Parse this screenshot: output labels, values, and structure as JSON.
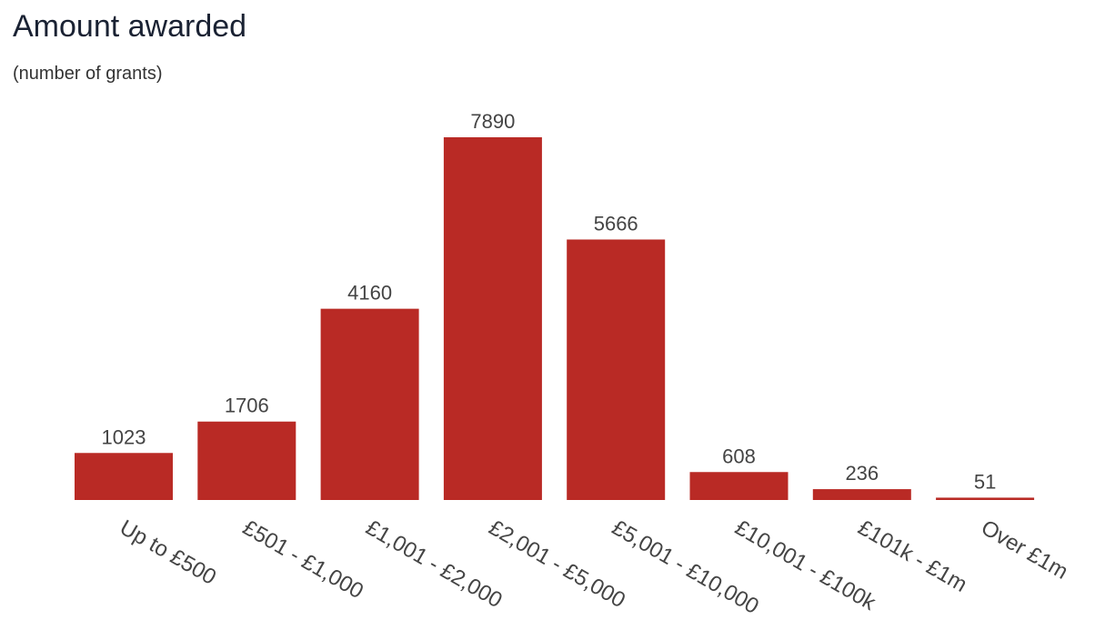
{
  "chart_data": {
    "type": "bar",
    "title": "Amount awarded",
    "subtitle": "(number of grants)",
    "categories": [
      "Up to £500",
      "£501 - £1,000",
      "£1,001 - £2,000",
      "£2,001 - £5,000",
      "£5,001 - £10,000",
      "£10,001 - £100k",
      "£101k - £1m",
      "Over £1m"
    ],
    "values": [
      1023,
      1706,
      4160,
      7890,
      5666,
      608,
      236,
      51
    ],
    "color": "#b92a25"
  }
}
